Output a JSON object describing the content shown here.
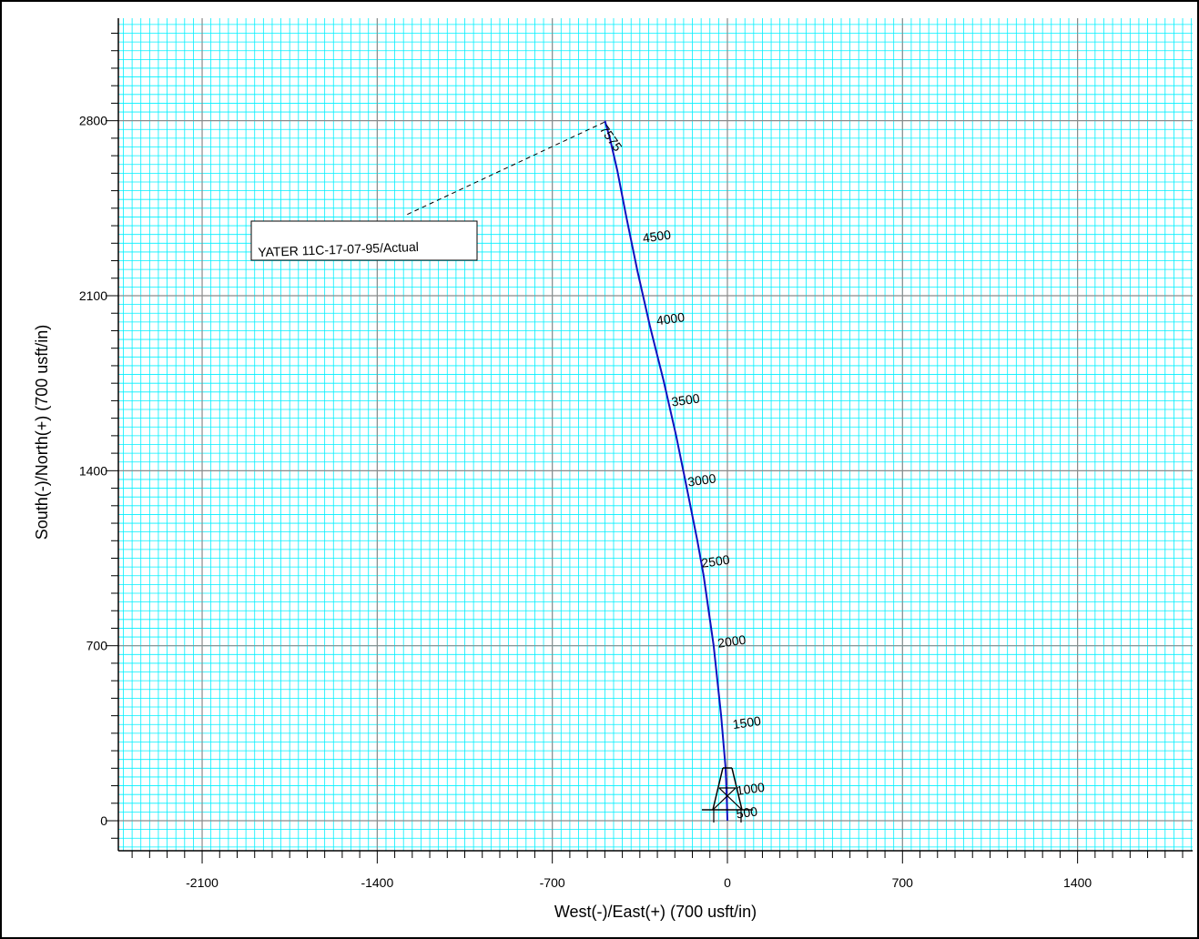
{
  "chart_data": {
    "type": "line",
    "title": "",
    "xlabel": "West(-)/East(+) (700 usft/in)",
    "ylabel": "South(-)/North(+) (700 usft/in)",
    "xlim": [
      -2435,
      1860
    ],
    "ylim": [
      -120,
      3210
    ],
    "x_ticks": [
      -2100,
      -1400,
      -700,
      0,
      700,
      1400
    ],
    "y_ticks": [
      0,
      700,
      1400,
      2100,
      2800
    ],
    "x_tick_labels": [
      "-2100",
      "-1400",
      "-700",
      "0",
      "700",
      "1400"
    ],
    "y_tick_labels": [
      "0",
      "700",
      "1400",
      "2100",
      "2800"
    ],
    "major_grid_step": 700,
    "minor_grid_step": 35,
    "grid": true,
    "colors": {
      "minor_grid": "#00f0ff",
      "major_grid": "#8a8a8a",
      "wellpath": "#1010c0",
      "text": "#000000"
    },
    "series": [
      {
        "x": [
          0,
          -1,
          -3,
          -5,
          -8,
          -15,
          -25,
          -40,
          -55,
          -75,
          -95,
          -120,
          -160,
          -205,
          -255,
          -310,
          -360,
          -405,
          -440,
          -470,
          -490
        ],
        "y": [
          0,
          40,
          100,
          160,
          220,
          300,
          420,
          560,
          700,
          840,
          980,
          1120,
          1320,
          1540,
          1760,
          1980,
          2200,
          2420,
          2600,
          2730,
          2800
        ]
      }
    ],
    "md_labels": [
      {
        "text": "500",
        "x": 80,
        "y": 15
      },
      {
        "text": "1000",
        "x": 95,
        "y": 110
      },
      {
        "text": "1500",
        "x": 80,
        "y": 375
      },
      {
        "text": "2000",
        "x": 20,
        "y": 700
      },
      {
        "text": "2500",
        "x": -45,
        "y": 1020
      },
      {
        "text": "3000",
        "x": -100,
        "y": 1345
      },
      {
        "text": "3500",
        "x": -165,
        "y": 1665
      },
      {
        "text": "4000",
        "x": -225,
        "y": 1990
      },
      {
        "text": "4500",
        "x": -280,
        "y": 2320
      },
      {
        "text": "7575",
        "x": -480,
        "y": 2720
      }
    ],
    "well_label": {
      "text": "YATER  11C-17-07-95/Actual",
      "leader_to": {
        "x": -490,
        "y": 2795
      },
      "leader_from": {
        "x": -1280,
        "y": 2425
      }
    },
    "rig_marker": {
      "x": 0,
      "y": 0
    }
  }
}
